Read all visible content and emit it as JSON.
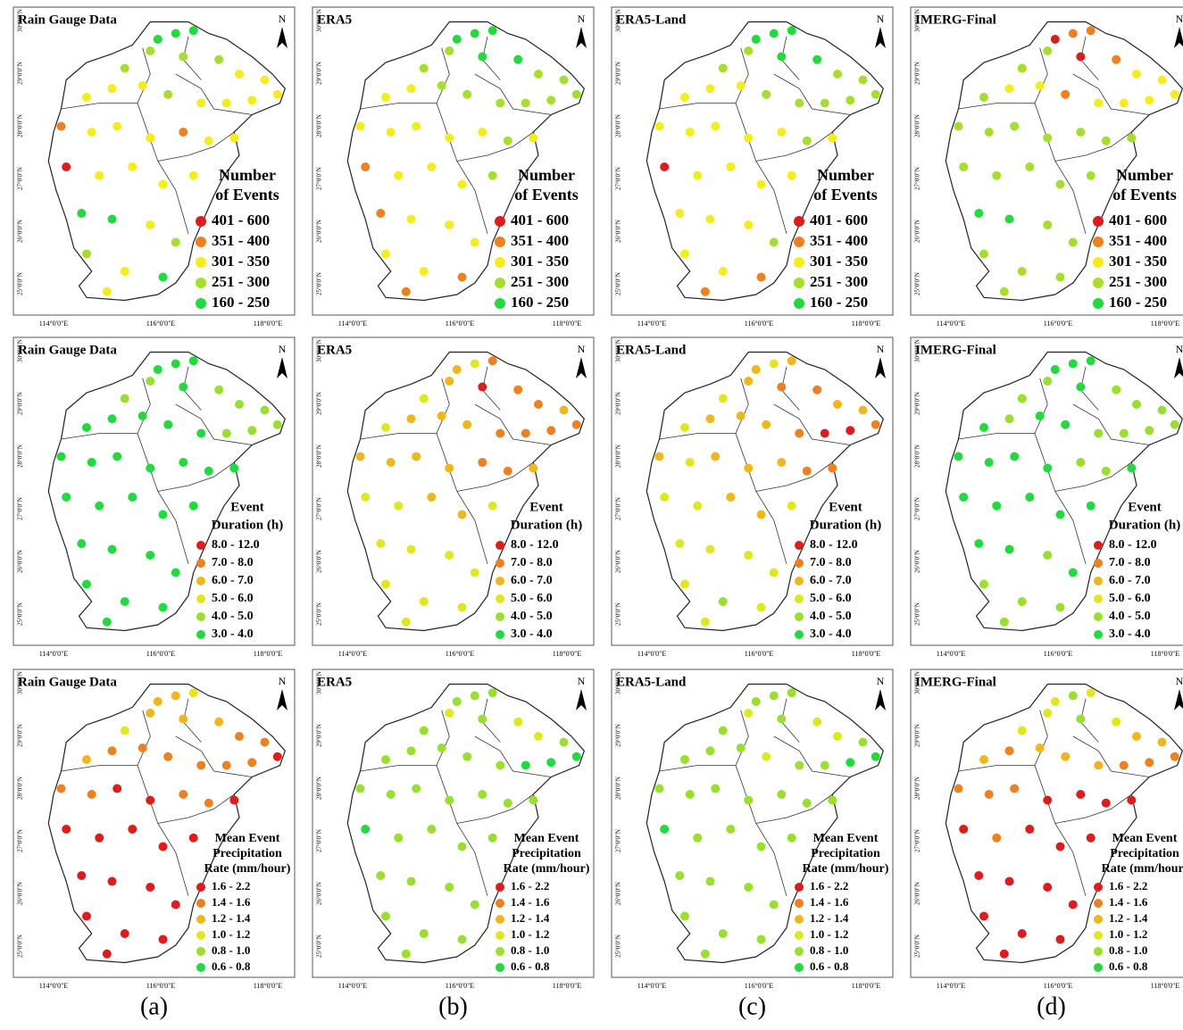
{
  "columns": [
    {
      "label": "(a)",
      "source": "Rain Gauge Data"
    },
    {
      "label": "(b)",
      "source": "ERA5"
    },
    {
      "label": "(c)",
      "source": "ERA5-Land"
    },
    {
      "label": "(d)",
      "source": "IMERG-Final"
    }
  ],
  "map": {
    "north": "N",
    "lon_ticks": [
      "114°0'0\"E",
      "116°0'0\"E",
      "118°0'0\"E"
    ],
    "lat_ticks": [
      "30°0'0\"N",
      "29°0'0\"N",
      "28°0'0\"N",
      "27°0'0\"N",
      "26°0'0\"N",
      "25°0'0\"N"
    ]
  },
  "rows": [
    {
      "legend_title": [
        "Number",
        "of Events"
      ],
      "classes": [
        {
          "label": "401 - 600",
          "color": "#e01b1b"
        },
        {
          "label": "351 - 400",
          "color": "#f07f1e"
        },
        {
          "label": "301 - 350",
          "color": "#f5ec1a"
        },
        {
          "label": "251 - 300",
          "color": "#a4e02a"
        },
        {
          "label": "160 - 250",
          "color": "#1fdc3c"
        }
      ],
      "panels": [
        [
          4,
          4,
          4,
          3,
          3,
          3,
          3,
          2,
          2,
          2,
          2,
          2,
          3,
          2,
          2,
          2,
          2,
          1,
          2,
          2,
          2,
          1,
          2,
          2,
          0,
          2,
          2,
          2,
          2,
          4,
          4,
          2,
          3,
          3,
          2,
          4,
          2
        ],
        [
          4,
          4,
          4,
          3,
          4,
          3,
          4,
          3,
          3,
          2,
          2,
          3,
          3,
          3,
          3,
          3,
          3,
          2,
          2,
          2,
          2,
          2,
          3,
          2,
          1,
          2,
          2,
          2,
          3,
          1,
          2,
          2,
          2,
          2,
          2,
          1,
          1
        ],
        [
          4,
          4,
          4,
          3,
          4,
          3,
          4,
          3,
          3,
          2,
          2,
          2,
          3,
          3,
          3,
          3,
          3,
          2,
          2,
          2,
          2,
          2,
          3,
          2,
          0,
          2,
          2,
          2,
          2,
          2,
          2,
          2,
          3,
          2,
          2,
          1,
          1
        ],
        [
          0,
          1,
          1,
          3,
          0,
          3,
          1,
          2,
          2,
          3,
          2,
          2,
          1,
          2,
          2,
          2,
          2,
          3,
          3,
          3,
          3,
          3,
          3,
          3,
          3,
          3,
          3,
          3,
          3,
          4,
          4,
          3,
          3,
          3,
          3,
          3,
          3
        ]
      ]
    },
    {
      "legend_title": [
        "Event",
        "Duration (h)"
      ],
      "classes": [
        {
          "label": "8.0 - 12.0",
          "color": "#e01b1b"
        },
        {
          "label": "7.0 - 8.0",
          "color": "#f07f1e"
        },
        {
          "label": "6.0 - 7.0",
          "color": "#f2b619"
        },
        {
          "label": "5.0 - 6.0",
          "color": "#dfe81e"
        },
        {
          "label": "4.0 - 5.0",
          "color": "#98e02c"
        },
        {
          "label": "3.0 - 4.0",
          "color": "#1fdc3c"
        }
      ],
      "panels": [
        [
          5,
          5,
          5,
          4,
          5,
          4,
          4,
          4,
          4,
          5,
          5,
          5,
          5,
          5,
          4,
          4,
          4,
          5,
          5,
          5,
          5,
          5,
          5,
          5,
          5,
          5,
          5,
          5,
          5,
          5,
          5,
          5,
          5,
          5,
          5,
          5,
          5
        ],
        [
          2,
          3,
          1,
          2,
          0,
          3,
          1,
          1,
          2,
          3,
          2,
          2,
          2,
          1,
          1,
          1,
          1,
          2,
          2,
          2,
          2,
          1,
          1,
          2,
          3,
          3,
          2,
          2,
          3,
          3,
          3,
          3,
          3,
          3,
          3,
          3,
          3
        ],
        [
          2,
          3,
          2,
          2,
          1,
          3,
          1,
          2,
          2,
          3,
          2,
          2,
          2,
          1,
          0,
          0,
          1,
          2,
          3,
          2,
          2,
          2,
          1,
          1,
          3,
          3,
          2,
          2,
          3,
          3,
          3,
          3,
          3,
          3,
          4,
          3,
          3
        ],
        [
          5,
          5,
          5,
          4,
          5,
          4,
          4,
          4,
          4,
          5,
          4,
          5,
          5,
          4,
          4,
          4,
          4,
          5,
          5,
          5,
          5,
          4,
          4,
          5,
          5,
          5,
          5,
          5,
          5,
          5,
          5,
          4,
          5,
          4,
          4,
          4,
          4
        ]
      ]
    },
    {
      "legend_title": [
        "Mean Event",
        "Precipitation",
        "Rate (mm/hour)"
      ],
      "classes": [
        {
          "label": "1.6 - 2.2",
          "color": "#e01b1b"
        },
        {
          "label": "1.4 - 1.6",
          "color": "#f07f1e"
        },
        {
          "label": "1.2 - 1.4",
          "color": "#f2b619"
        },
        {
          "label": "1.0 - 1.2",
          "color": "#dfe81e"
        },
        {
          "label": "0.8 - 1.0",
          "color": "#98e02c"
        },
        {
          "label": "0.6 - 0.8",
          "color": "#1fdc3c"
        }
      ],
      "panels": [
        [
          2,
          2,
          3,
          2,
          2,
          3,
          2,
          1,
          1,
          2,
          1,
          1,
          1,
          1,
          1,
          1,
          0,
          1,
          1,
          0,
          0,
          1,
          1,
          0,
          0,
          0,
          0,
          0,
          0,
          0,
          0,
          0,
          0,
          0,
          0,
          0,
          0
        ],
        [
          4,
          4,
          4,
          3,
          4,
          4,
          3,
          3,
          4,
          4,
          4,
          4,
          4,
          4,
          5,
          5,
          5,
          4,
          4,
          4,
          4,
          4,
          4,
          4,
          5,
          4,
          4,
          4,
          4,
          4,
          4,
          4,
          4,
          4,
          4,
          4,
          4
        ],
        [
          4,
          4,
          4,
          3,
          4,
          4,
          3,
          3,
          4,
          4,
          4,
          4,
          3,
          4,
          4,
          5,
          5,
          4,
          4,
          4,
          4,
          4,
          4,
          4,
          5,
          4,
          4,
          4,
          4,
          4,
          4,
          4,
          4,
          4,
          4,
          4,
          4
        ],
        [
          3,
          4,
          3,
          3,
          4,
          3,
          3,
          2,
          2,
          2,
          1,
          2,
          2,
          2,
          1,
          1,
          1,
          1,
          1,
          1,
          0,
          0,
          0,
          0,
          0,
          1,
          0,
          0,
          0,
          0,
          0,
          0,
          0,
          0,
          0,
          0,
          0
        ]
      ]
    }
  ]
}
